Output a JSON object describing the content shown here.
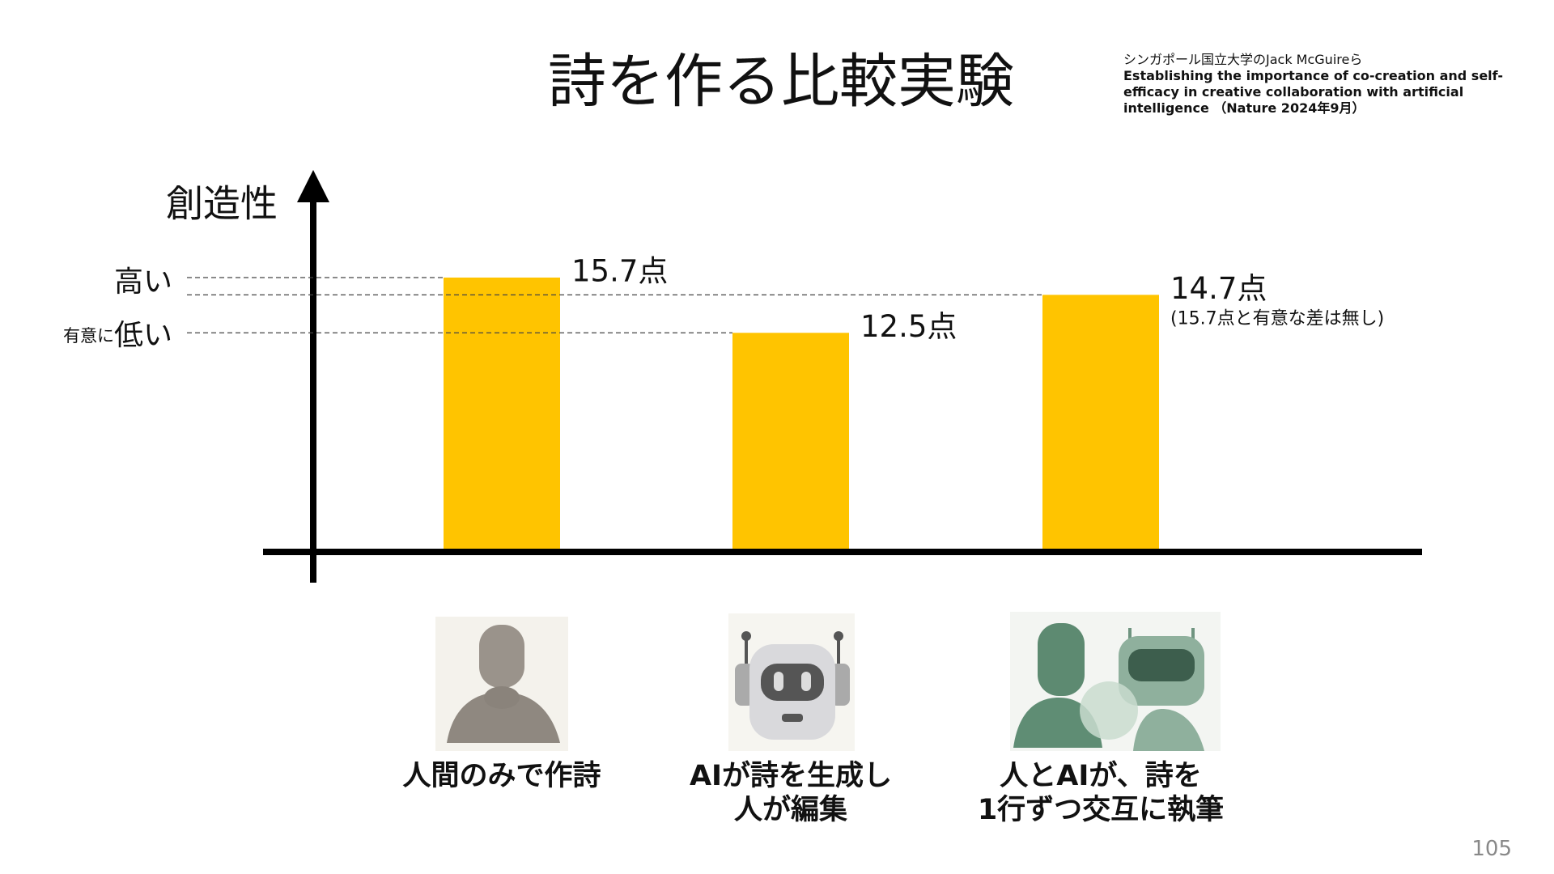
{
  "header": {
    "title": "詩を作る比較実験",
    "page_number": "105"
  },
  "source": {
    "author": "シンガポール国立大学のJack McGuireら",
    "paper": "Establishing the importance of co-creation and self-efficacy in creative collaboration with artificial intelligence",
    "journal": "（Nature 2024年9月）"
  },
  "chart_data": {
    "type": "bar",
    "y_label": "創造性",
    "categories": [
      "人間のみで作詩",
      "AIが詩を生成し\n人が編集",
      "人とAIが、詩を\n1行ずつ交互に執筆"
    ],
    "values": [
      15.7,
      12.5,
      14.7
    ],
    "value_labels": [
      "15.7点",
      "12.5点",
      "14.7点"
    ],
    "color": "#ffc400",
    "annotations": {
      "high": "高い",
      "significant": "有意に",
      "low": "低い",
      "note": "(15.7点と有意な差は無し)"
    }
  }
}
